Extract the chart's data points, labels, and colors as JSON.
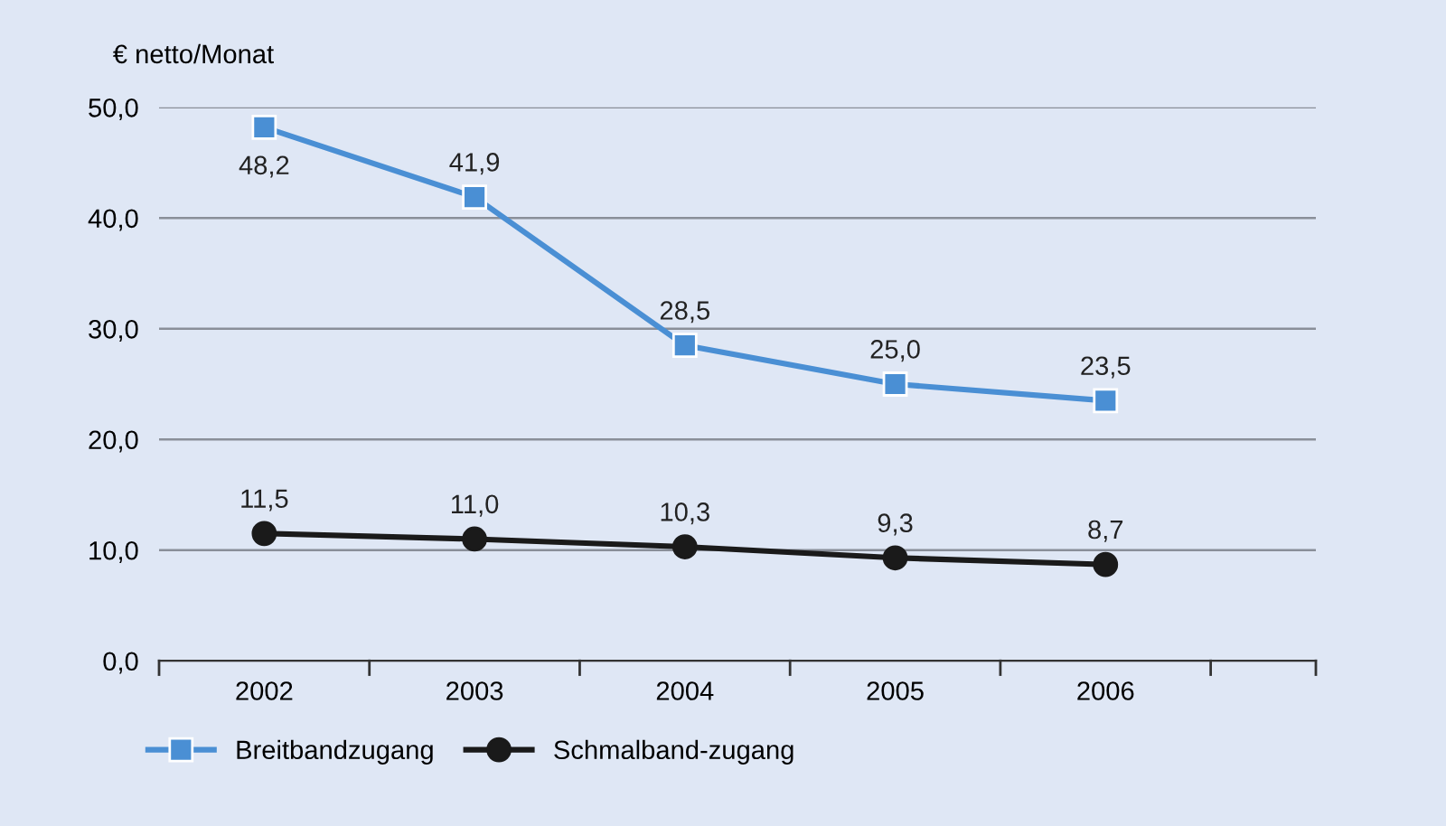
{
  "chart_data": {
    "type": "line",
    "ylabel": "€ netto/Monat",
    "categories": [
      "2002",
      "2003",
      "2004",
      "2005",
      "2006"
    ],
    "series": [
      {
        "name": "Breitbandzugang",
        "color": "#4a8fd4",
        "marker": "square",
        "values": [
          48.2,
          41.9,
          28.5,
          25.0,
          23.5
        ],
        "value_labels": [
          "48,2",
          "41,9",
          "28,5",
          "25,0",
          "23,5"
        ]
      },
      {
        "name": "Schmalband-zugang",
        "color": "#1a1a1a",
        "marker": "circle",
        "values": [
          11.5,
          11.0,
          10.3,
          9.3,
          8.7
        ],
        "value_labels": [
          "11,5",
          "11,0",
          "10,3",
          "9,3",
          "8,7"
        ]
      }
    ],
    "ylim": [
      0,
      50
    ],
    "yticks": [
      {
        "value": 0,
        "label": "0,0"
      },
      {
        "value": 10,
        "label": "10,0"
      },
      {
        "value": 20,
        "label": "20,0"
      },
      {
        "value": 30,
        "label": "30,0"
      },
      {
        "value": 40,
        "label": "40,0"
      },
      {
        "value": 50,
        "label": "50,0"
      }
    ],
    "grid": "y",
    "legend": "bottom left",
    "line_style": "solid"
  }
}
